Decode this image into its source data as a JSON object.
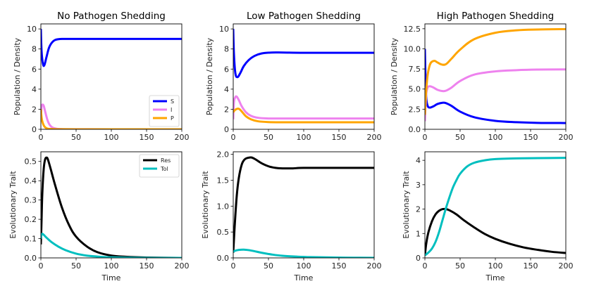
{
  "chart_data": [
    {
      "id": "no-shed-pop",
      "type": "line",
      "title": "No Pathogen Shedding",
      "xlabel": "",
      "ylabel": "Population / Density",
      "xlim": [
        0,
        200
      ],
      "ylim": [
        0,
        10.5
      ],
      "xticks": [
        0,
        50,
        100,
        150,
        200
      ],
      "yticks": [
        0,
        2,
        4,
        6,
        8,
        10
      ],
      "ytick_labels": [
        "0",
        "2",
        "4",
        "6",
        "8",
        "10"
      ],
      "legend": {
        "placement": "lower-right",
        "entries": [
          "S",
          "I",
          "P"
        ]
      },
      "series": [
        {
          "name": "S",
          "color": "#0000ff",
          "x": [
            0,
            1,
            3,
            5,
            8,
            12,
            18,
            25,
            35,
            50,
            100,
            150,
            200
          ],
          "y": [
            10.0,
            7.8,
            6.5,
            6.4,
            7.2,
            8.2,
            8.8,
            8.98,
            9.0,
            9.0,
            9.0,
            9.0,
            9.0
          ]
        },
        {
          "name": "I",
          "color": "#ee82ee",
          "x": [
            0,
            1,
            2,
            4,
            6,
            9,
            12,
            16,
            22,
            30,
            50,
            100,
            200
          ],
          "y": [
            1.0,
            2.2,
            2.45,
            2.35,
            1.8,
            1.0,
            0.5,
            0.2,
            0.06,
            0.02,
            0.01,
            0.0,
            0.0
          ]
        },
        {
          "name": "P",
          "color": "#ffa500",
          "x": [
            0,
            1,
            2,
            4,
            6,
            9,
            12,
            18,
            30,
            50,
            100,
            200
          ],
          "y": [
            2.0,
            1.2,
            0.8,
            0.4,
            0.2,
            0.08,
            0.04,
            0.02,
            0.01,
            0.0,
            0.0,
            0.0
          ]
        }
      ]
    },
    {
      "id": "low-shed-pop",
      "type": "line",
      "title": "Low Pathogen Shedding",
      "xlabel": "",
      "ylabel": "Population / Density",
      "xlim": [
        0,
        200
      ],
      "ylim": [
        0,
        10.5
      ],
      "xticks": [
        0,
        50,
        100,
        150,
        200
      ],
      "yticks": [
        0,
        2,
        4,
        6,
        8,
        10
      ],
      "ytick_labels": [
        "0",
        "2",
        "4",
        "6",
        "8",
        "10"
      ],
      "series": [
        {
          "name": "S",
          "color": "#0000ff",
          "x": [
            0,
            1,
            3,
            6,
            10,
            15,
            22,
            30,
            40,
            55,
            70,
            100,
            150,
            200
          ],
          "y": [
            10.0,
            7.5,
            5.6,
            5.2,
            5.6,
            6.3,
            6.9,
            7.3,
            7.55,
            7.65,
            7.65,
            7.62,
            7.62,
            7.62
          ]
        },
        {
          "name": "I",
          "color": "#ee82ee",
          "x": [
            0,
            1,
            3,
            5,
            8,
            12,
            18,
            25,
            35,
            50,
            70,
            100,
            200
          ],
          "y": [
            1.0,
            2.7,
            3.2,
            3.25,
            2.9,
            2.3,
            1.7,
            1.35,
            1.15,
            1.08,
            1.08,
            1.08,
            1.08
          ]
        },
        {
          "name": "P",
          "color": "#ffa500",
          "x": [
            0,
            1,
            3,
            6,
            9,
            13,
            18,
            25,
            35,
            50,
            70,
            100,
            200
          ],
          "y": [
            1.7,
            1.8,
            1.95,
            2.05,
            2.0,
            1.7,
            1.3,
            1.0,
            0.8,
            0.72,
            0.7,
            0.7,
            0.7
          ]
        }
      ]
    },
    {
      "id": "high-shed-pop",
      "type": "line",
      "title": "High Pathogen Shedding",
      "xlabel": "",
      "ylabel": "Population / Density",
      "xlim": [
        0,
        200
      ],
      "ylim": [
        0,
        13.1
      ],
      "xticks": [
        0,
        50,
        100,
        150,
        200
      ],
      "yticks": [
        0,
        2.5,
        5,
        7.5,
        10,
        12.5
      ],
      "ytick_labels": [
        "0.0",
        "2.5",
        "5.0",
        "7.5",
        "10.0",
        "12.5"
      ],
      "series": [
        {
          "name": "S",
          "color": "#0000ff",
          "x": [
            0,
            1,
            2,
            4,
            7,
            12,
            18,
            25,
            30,
            38,
            50,
            70,
            100,
            130,
            160,
            200
          ],
          "y": [
            10.0,
            6.0,
            3.8,
            2.9,
            2.7,
            2.85,
            3.15,
            3.3,
            3.25,
            2.9,
            2.2,
            1.5,
            1.05,
            0.88,
            0.8,
            0.78
          ]
        },
        {
          "name": "I",
          "color": "#ee82ee",
          "x": [
            0,
            1,
            2,
            4,
            7,
            12,
            18,
            25,
            30,
            38,
            50,
            70,
            100,
            130,
            160,
            200
          ],
          "y": [
            1.0,
            3.0,
            4.5,
            5.2,
            5.35,
            5.2,
            4.9,
            4.75,
            4.8,
            5.2,
            6.0,
            6.8,
            7.2,
            7.35,
            7.42,
            7.45
          ]
        },
        {
          "name": "P",
          "color": "#ffa500",
          "x": [
            0,
            1,
            2,
            4,
            7,
            10,
            14,
            18,
            24,
            30,
            38,
            50,
            70,
            100,
            130,
            160,
            200
          ],
          "y": [
            1.8,
            3.5,
            5.0,
            6.8,
            8.0,
            8.4,
            8.5,
            8.3,
            8.05,
            8.1,
            8.8,
            9.9,
            11.2,
            12.0,
            12.3,
            12.4,
            12.45
          ]
        }
      ]
    },
    {
      "id": "no-shed-trait",
      "type": "line",
      "title": "",
      "xlabel": "Time",
      "ylabel": "Evolutionary Trait",
      "xlim": [
        0,
        200
      ],
      "ylim": [
        0,
        0.55
      ],
      "xticks": [
        0,
        50,
        100,
        150,
        200
      ],
      "yticks": [
        0,
        0.1,
        0.2,
        0.3,
        0.4,
        0.5
      ],
      "ytick_labels": [
        "0.0",
        "0.1",
        "0.2",
        "0.3",
        "0.4",
        "0.5"
      ],
      "legend": {
        "placement": "upper-right",
        "entries": [
          "Res",
          "Tol"
        ]
      },
      "series": [
        {
          "name": "Res",
          "color": "#000000",
          "x": [
            0,
            1,
            2,
            4,
            6,
            8,
            10,
            14,
            20,
            30,
            40,
            50,
            65,
            80,
            100,
            120,
            150,
            200
          ],
          "y": [
            0.07,
            0.2,
            0.33,
            0.46,
            0.51,
            0.52,
            0.51,
            0.46,
            0.38,
            0.26,
            0.17,
            0.11,
            0.06,
            0.03,
            0.012,
            0.006,
            0.002,
            0.0
          ]
        },
        {
          "name": "Tol",
          "color": "#00bfbf",
          "x": [
            0,
            1,
            2,
            4,
            8,
            15,
            25,
            35,
            50,
            65,
            80,
            100,
            130,
            160,
            200
          ],
          "y": [
            0.1,
            0.12,
            0.125,
            0.12,
            0.105,
            0.082,
            0.058,
            0.04,
            0.022,
            0.012,
            0.007,
            0.003,
            0.001,
            0.0,
            0.0
          ]
        }
      ]
    },
    {
      "id": "low-shed-trait",
      "type": "line",
      "title": "",
      "xlabel": "Time",
      "ylabel": "Evolutionary Trait",
      "xlim": [
        0,
        200
      ],
      "ylim": [
        0,
        2.05
      ],
      "xticks": [
        0,
        50,
        100,
        150,
        200
      ],
      "yticks": [
        0,
        0.5,
        1.0,
        1.5,
        2.0
      ],
      "ytick_labels": [
        "0.0",
        "0.5",
        "1.0",
        "1.5",
        "2.0"
      ],
      "series": [
        {
          "name": "Res",
          "color": "#000000",
          "x": [
            0,
            2,
            5,
            8,
            12,
            16,
            20,
            26,
            32,
            40,
            50,
            60,
            70,
            85,
            100,
            150,
            200
          ],
          "y": [
            0.1,
            0.6,
            1.2,
            1.55,
            1.8,
            1.9,
            1.93,
            1.94,
            1.9,
            1.83,
            1.77,
            1.74,
            1.73,
            1.73,
            1.74,
            1.74,
            1.74
          ]
        },
        {
          "name": "Tol",
          "color": "#00bfbf",
          "x": [
            0,
            3,
            8,
            15,
            22,
            30,
            40,
            55,
            70,
            90,
            110,
            140,
            170,
            200
          ],
          "y": [
            0.12,
            0.14,
            0.155,
            0.16,
            0.15,
            0.13,
            0.1,
            0.065,
            0.04,
            0.025,
            0.015,
            0.008,
            0.004,
            0.002
          ]
        }
      ]
    },
    {
      "id": "high-shed-trait",
      "type": "line",
      "title": "",
      "xlabel": "Time",
      "ylabel": "Evolutionary Trait",
      "xlim": [
        0,
        200
      ],
      "ylim": [
        0,
        4.35
      ],
      "xticks": [
        0,
        50,
        100,
        150,
        200
      ],
      "yticks": [
        0,
        1,
        2,
        3,
        4
      ],
      "ytick_labels": [
        "0",
        "1",
        "2",
        "3",
        "4"
      ],
      "series": [
        {
          "name": "Res",
          "color": "#000000",
          "x": [
            0,
            2,
            5,
            10,
            15,
            20,
            25,
            30,
            35,
            45,
            55,
            70,
            85,
            100,
            120,
            140,
            160,
            180,
            200
          ],
          "y": [
            0.1,
            0.6,
            1.05,
            1.5,
            1.78,
            1.93,
            2.0,
            2.0,
            1.95,
            1.78,
            1.55,
            1.25,
            0.98,
            0.78,
            0.58,
            0.43,
            0.33,
            0.25,
            0.2
          ]
        },
        {
          "name": "Tol",
          "color": "#00bfbf",
          "x": [
            0,
            5,
            10,
            15,
            20,
            25,
            30,
            35,
            40,
            45,
            50,
            60,
            70,
            85,
            100,
            130,
            160,
            200
          ],
          "y": [
            0.1,
            0.22,
            0.38,
            0.65,
            1.05,
            1.55,
            2.05,
            2.5,
            2.9,
            3.2,
            3.45,
            3.75,
            3.9,
            4.0,
            4.05,
            4.08,
            4.09,
            4.1
          ]
        }
      ]
    }
  ]
}
